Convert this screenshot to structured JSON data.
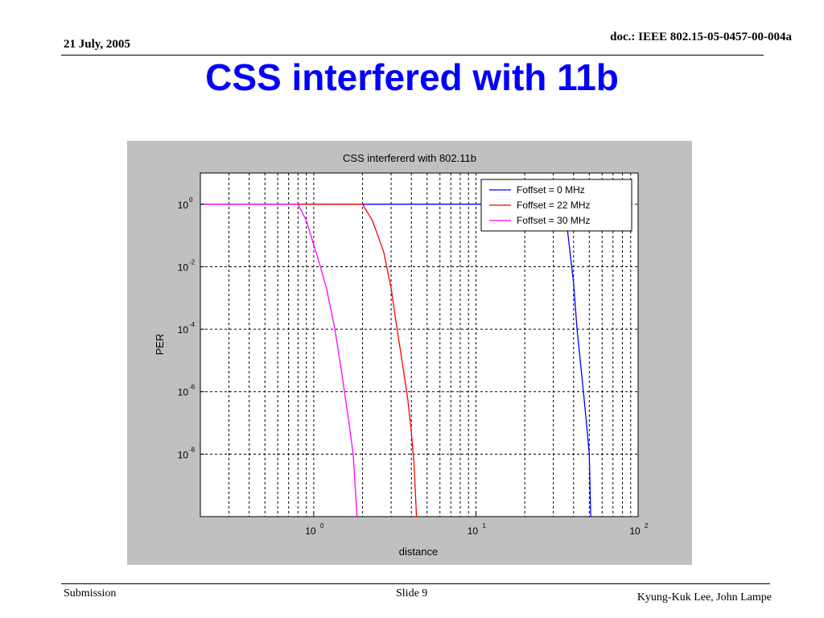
{
  "header": {
    "date": "21 July, 2005",
    "doc_id": "doc.: IEEE 802.15-05-0457-00-004a"
  },
  "slide": {
    "title": "CSS interfered with 11b"
  },
  "footer": {
    "left": "Submission",
    "center": "Slide 9",
    "right": "Kyung-Kuk Lee, John Lampe"
  },
  "colors": {
    "title": "#0000ff",
    "figure_bg": "#c0c0c0",
    "series_0mhz": "#0000ff",
    "series_22mhz": "#ff0000",
    "series_30mhz": "#ff00ff"
  },
  "chart_data": {
    "type": "line",
    "title": "CSS interfererd with 802.11b",
    "xlabel": "distance",
    "ylabel": "PER",
    "xscale": "log",
    "yscale": "log",
    "xlim": [
      0.2,
      100
    ],
    "ylim": [
      1e-10,
      10
    ],
    "xticks": [
      1,
      10,
      100
    ],
    "xtick_labels": [
      {
        "base": "10",
        "exp": "0"
      },
      {
        "base": "10",
        "exp": "1"
      },
      {
        "base": "10",
        "exp": "2"
      }
    ],
    "yticks": [
      1e-08,
      1e-06,
      0.0001,
      0.01,
      1
    ],
    "ytick_labels": [
      {
        "base": "10",
        "exp": "-8"
      },
      {
        "base": "10",
        "exp": "-6"
      },
      {
        "base": "10",
        "exp": "-4"
      },
      {
        "base": "10",
        "exp": "-2"
      },
      {
        "base": "10",
        "exp": "0"
      }
    ],
    "grid": true,
    "legend_position": "top-right",
    "series": [
      {
        "name": "Foffset = 0 MHz",
        "color": "#0000ff",
        "x": [
          0.2,
          35,
          37,
          40,
          42,
          44,
          46,
          48,
          50,
          51
        ],
        "y": [
          1,
          1,
          0.1,
          0.003,
          0.0001,
          1e-05,
          1e-06,
          1e-07,
          1e-08,
          1e-10
        ]
      },
      {
        "name": "Foffset = 22 MHz",
        "color": "#ff0000",
        "x": [
          0.2,
          2.0,
          2.3,
          2.7,
          3.0,
          3.2,
          3.5,
          3.8,
          4.0,
          4.15,
          4.3
        ],
        "y": [
          1,
          1,
          0.3,
          0.03,
          0.002,
          0.0002,
          1e-05,
          6e-07,
          5e-08,
          5e-09,
          1e-10
        ]
      },
      {
        "name": "Foffset = 30 MHz",
        "color": "#ff00ff",
        "x": [
          0.2,
          0.8,
          0.9,
          1.0,
          1.1,
          1.2,
          1.35,
          1.5,
          1.65,
          1.75,
          1.85
        ],
        "y": [
          1,
          1,
          0.3,
          0.05,
          0.01,
          0.002,
          0.0001,
          3e-06,
          1e-07,
          1e-08,
          1e-10
        ]
      }
    ]
  }
}
